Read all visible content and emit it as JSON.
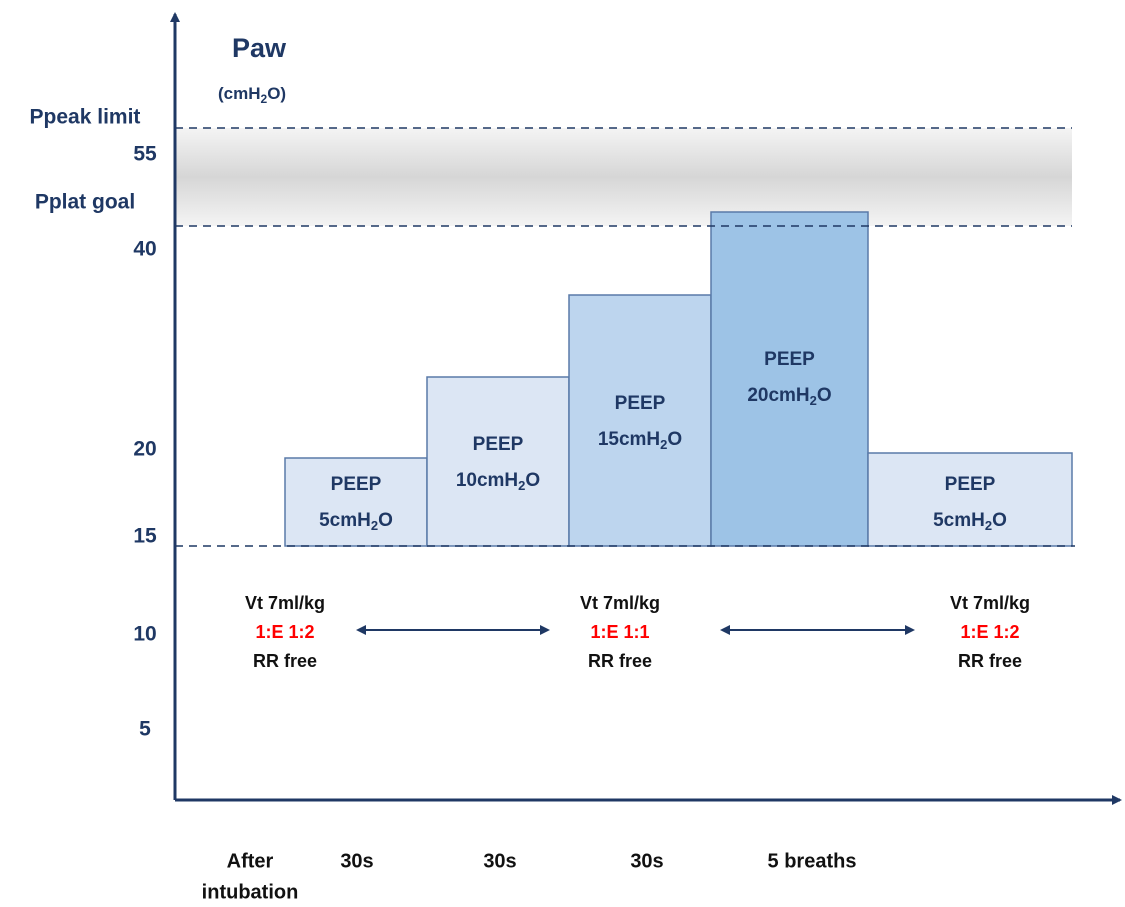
{
  "axis": {
    "title": "Paw",
    "unit": [
      "(cmH",
      "2",
      "O)"
    ],
    "ticks": [
      "55",
      "40",
      "20",
      "15",
      "10",
      "5"
    ],
    "limits": [
      "Ppeak limit",
      "Pplat goal"
    ]
  },
  "steps": [
    {
      "label": "PEEP",
      "value": [
        "5cmH",
        "2",
        "O"
      ]
    },
    {
      "label": "PEEP",
      "value": [
        "10cmH",
        "2",
        "O"
      ]
    },
    {
      "label": "PEEP",
      "value": [
        "15cmH",
        "2",
        "O"
      ]
    },
    {
      "label": "PEEP",
      "value": [
        "20cmH",
        "2",
        "O"
      ]
    },
    {
      "label": "PEEP",
      "value": [
        "5cmH",
        "2",
        "O"
      ]
    }
  ],
  "settings": [
    {
      "vt": "Vt 7ml/kg",
      "ie": "1:E 1:2",
      "rr": "RR free"
    },
    {
      "vt": "Vt 7ml/kg",
      "ie": "1:E 1:1",
      "rr": "RR free"
    },
    {
      "vt": "Vt 7ml/kg",
      "ie": "1:E 1:2",
      "rr": "RR free"
    }
  ],
  "durations": [
    [
      "After",
      "intubation"
    ],
    [
      "30s"
    ],
    [
      "30s"
    ],
    [
      "30s"
    ],
    [
      "5 breaths"
    ]
  ]
}
